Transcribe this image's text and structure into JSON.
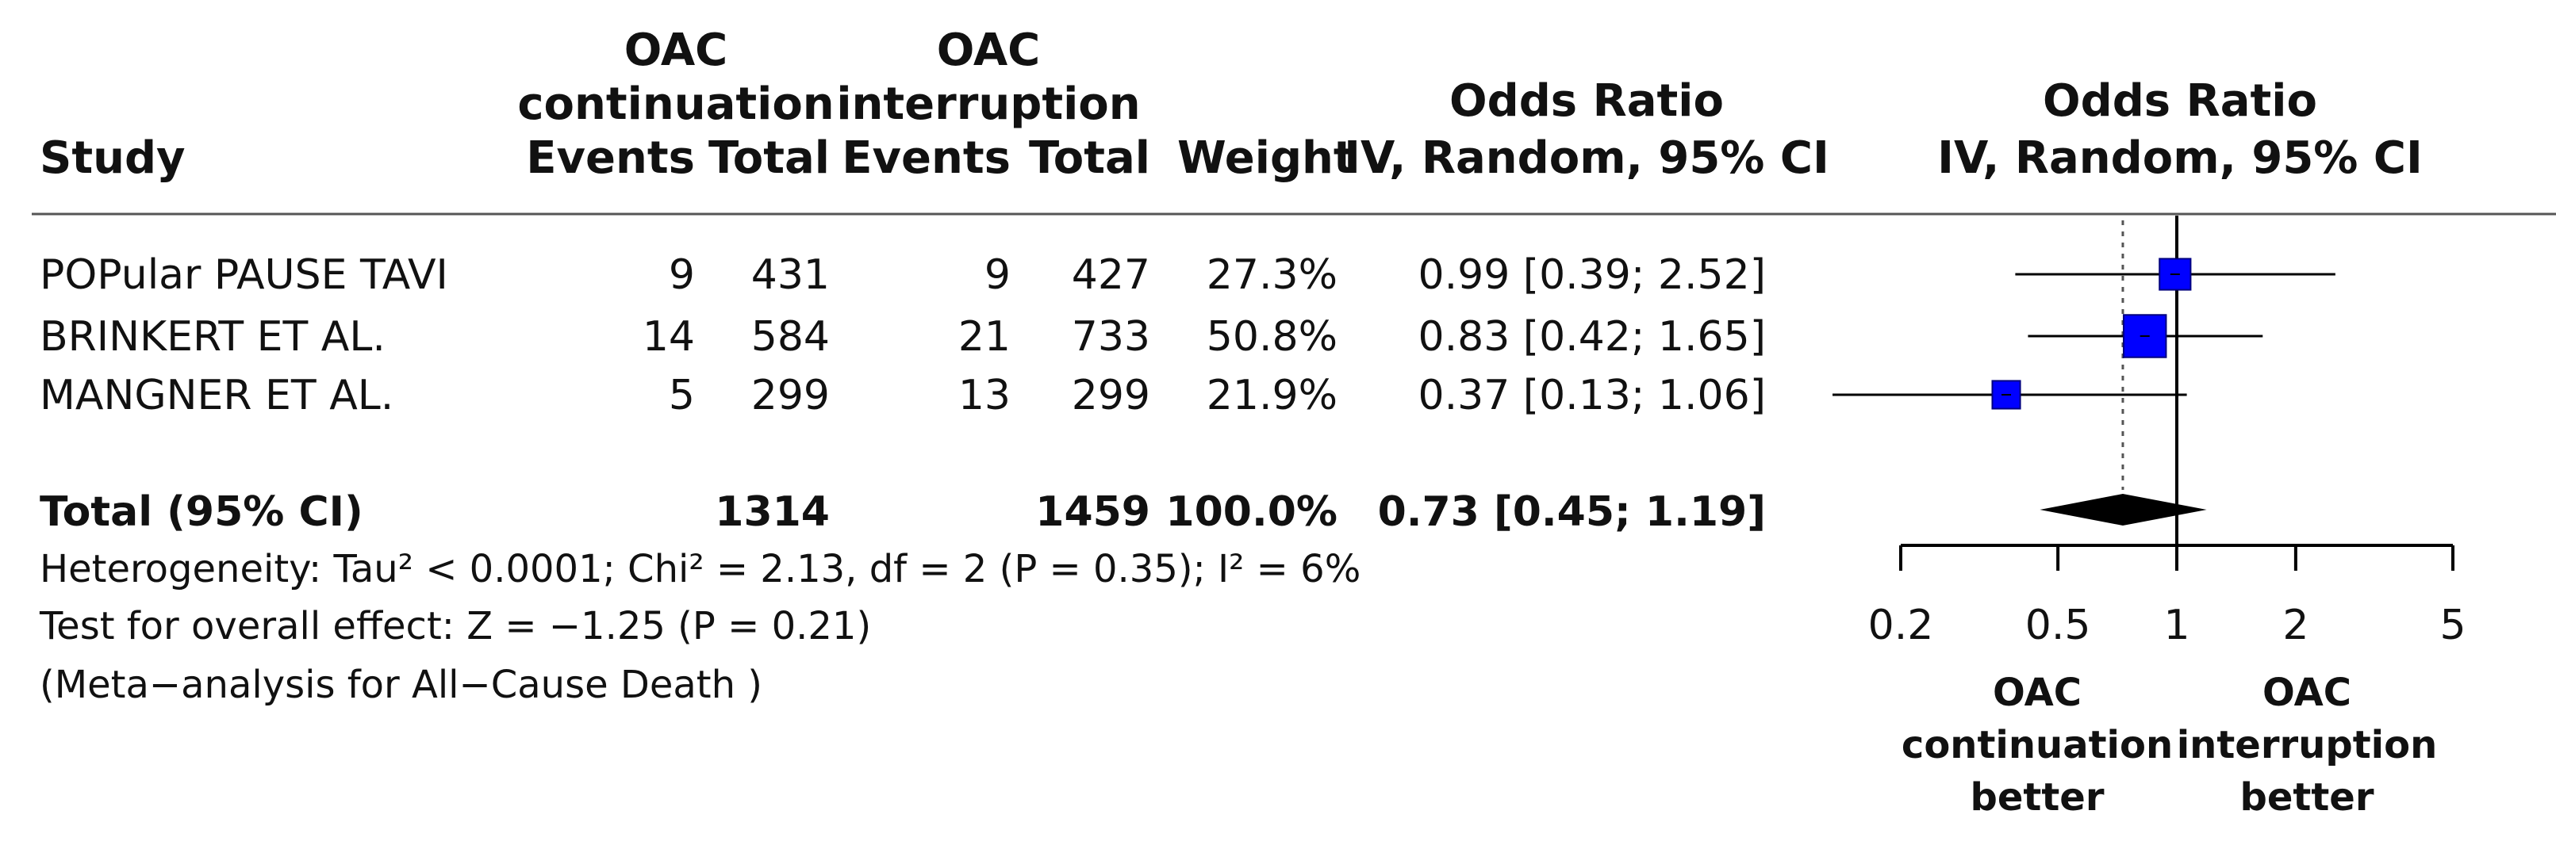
{
  "headers": {
    "study": "Study",
    "group1_line1": "OAC",
    "group1_line2": "continuation",
    "group2_line1": "OAC",
    "group2_line2": "interruption",
    "events": "Events",
    "total": "Total",
    "weight": "Weight",
    "or_title": "Odds Ratio",
    "or_method": "IV, Random, 95% CI",
    "plot_title": "Odds Ratio",
    "plot_method": "IV, Random, 95% CI"
  },
  "total_row": {
    "label": "Total (95% CI)",
    "total1": "1314",
    "total2": "1459",
    "weight": "100.0%",
    "ci_text": "0.73 [0.45; 1.19]"
  },
  "footer": {
    "heterogeneity": "Heterogeneity: Tau² < 0.0001; Chi² = 2.13, df = 2 (P = 0.35); I² = 6%",
    "overall_test": "Test for overall effect: Z = −1.25 (P = 0.21)",
    "note": "(Meta−analysis for All−Cause Death )"
  },
  "axis_labels": {
    "left_line1": "OAC",
    "left_line2": "continuation",
    "left_line3": "better",
    "right_line1": "OAC",
    "right_line2": "interruption",
    "right_line3": "better"
  },
  "colors": {
    "study_marker": "#0000ff",
    "pooled_marker": "#000000",
    "line": "#000000"
  },
  "chart_data": {
    "type": "forest",
    "scale": "log",
    "xlim": [
      0.2,
      5
    ],
    "reference_line": 1,
    "pooled_line": 0.73,
    "ticks": [
      0.2,
      0.5,
      1,
      2,
      5
    ],
    "tick_labels": [
      "0.2",
      "0.5",
      "1",
      "2",
      "5"
    ],
    "studies": [
      {
        "name": "POPular PAUSE TAVI",
        "events1": "9",
        "total1": "431",
        "events2": "9",
        "total2": "427",
        "weight": "27.3%",
        "ci_text": "0.99 [0.39; 2.52]",
        "or": 0.99,
        "lower": 0.39,
        "upper": 2.52,
        "weight_value": 27.3
      },
      {
        "name": "BRINKERT ET AL.",
        "events1": "14",
        "total1": "584",
        "events2": "21",
        "total2": "733",
        "weight": "50.8%",
        "ci_text": "0.83 [0.42; 1.65]",
        "or": 0.83,
        "lower": 0.42,
        "upper": 1.65,
        "weight_value": 50.8
      },
      {
        "name": "MANGNER ET AL.",
        "events1": "5",
        "total1": "299",
        "events2": "13",
        "total2": "299",
        "weight": "21.9%",
        "ci_text": "0.37 [0.13; 1.06]",
        "or": 0.37,
        "lower": 0.13,
        "upper": 1.06,
        "weight_value": 21.9
      }
    ],
    "pooled": {
      "or": 0.73,
      "lower": 0.45,
      "upper": 1.19
    }
  }
}
